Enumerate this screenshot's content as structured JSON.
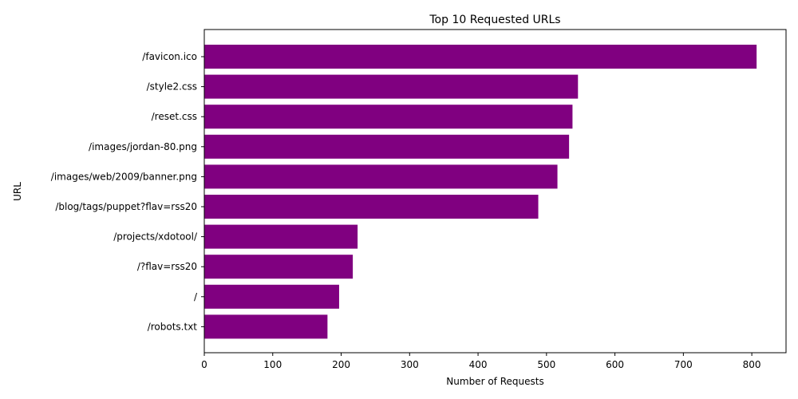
{
  "chart_data": {
    "type": "bar",
    "orientation": "horizontal",
    "title": "Top 10 Requested URLs",
    "xlabel": "Number of Requests",
    "ylabel": "URL",
    "categories": [
      "/favicon.ico",
      "/style2.css",
      "/reset.css",
      "/images/jordan-80.png",
      "/images/web/2009/banner.png",
      "/blog/tags/puppet?flav=rss20",
      "/projects/xdotool/",
      "/?flav=rss20",
      "/",
      "/robots.txt"
    ],
    "values": [
      807,
      546,
      538,
      533,
      516,
      488,
      224,
      217,
      197,
      180
    ],
    "xlim": [
      0,
      850
    ],
    "xticks": [
      0,
      100,
      200,
      300,
      400,
      500,
      600,
      700,
      800
    ],
    "grid": false,
    "legend": "none",
    "bar_color": "#800080"
  }
}
